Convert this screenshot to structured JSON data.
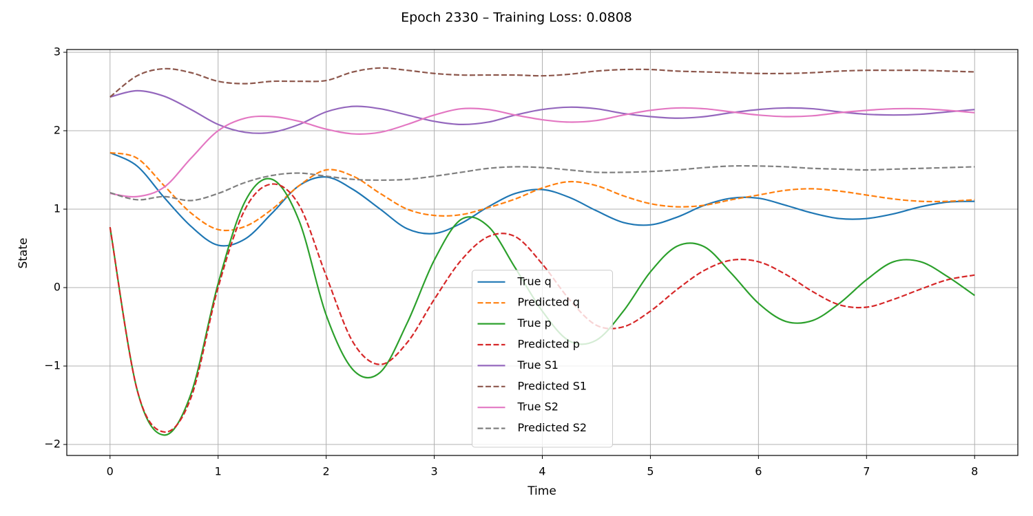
{
  "chart_data": {
    "type": "line",
    "title": "Epoch 2330 – Training Loss: 0.0808",
    "xlabel": "Time",
    "ylabel": "State",
    "x": [
      0,
      0.25,
      0.5,
      0.75,
      1,
      1.25,
      1.5,
      1.75,
      2,
      2.25,
      2.5,
      2.75,
      3,
      3.25,
      3.5,
      3.75,
      4,
      4.25,
      4.5,
      4.75,
      5,
      5.25,
      5.5,
      5.75,
      6,
      6.25,
      6.5,
      6.75,
      7,
      7.25,
      7.5,
      7.75,
      8
    ],
    "series": [
      {
        "name": "True q",
        "color": "#1f77b4",
        "style": "solid",
        "values": [
          1.72,
          1.55,
          1.15,
          0.78,
          0.54,
          0.62,
          0.95,
          1.3,
          1.41,
          1.25,
          1.0,
          0.75,
          0.69,
          0.82,
          1.03,
          1.2,
          1.25,
          1.15,
          0.98,
          0.83,
          0.8,
          0.9,
          1.05,
          1.14,
          1.14,
          1.05,
          0.95,
          0.88,
          0.88,
          0.94,
          1.03,
          1.09,
          1.1
        ]
      },
      {
        "name": "Predicted q",
        "color": "#ff7f0e",
        "style": "dashed",
        "values": [
          1.72,
          1.65,
          1.3,
          0.95,
          0.74,
          0.78,
          1.0,
          1.3,
          1.5,
          1.42,
          1.2,
          1.0,
          0.92,
          0.93,
          1.02,
          1.13,
          1.27,
          1.35,
          1.3,
          1.17,
          1.07,
          1.03,
          1.05,
          1.12,
          1.18,
          1.24,
          1.26,
          1.23,
          1.18,
          1.13,
          1.1,
          1.1,
          1.12
        ]
      },
      {
        "name": "True p",
        "color": "#2ca02c",
        "style": "solid",
        "values": [
          0.77,
          -1.3,
          -1.88,
          -1.35,
          0.05,
          1.1,
          1.38,
          0.85,
          -0.35,
          -1.05,
          -1.08,
          -0.45,
          0.35,
          0.87,
          0.78,
          0.25,
          -0.3,
          -0.68,
          -0.67,
          -0.3,
          0.2,
          0.53,
          0.52,
          0.18,
          -0.2,
          -0.43,
          -0.42,
          -0.2,
          0.1,
          0.33,
          0.33,
          0.14,
          -0.1
        ]
      },
      {
        "name": "Predicted p",
        "color": "#d62728",
        "style": "dashed",
        "values": [
          0.77,
          -1.3,
          -1.84,
          -1.4,
          0.0,
          1.0,
          1.32,
          1.05,
          0.15,
          -0.7,
          -0.98,
          -0.7,
          -0.15,
          0.35,
          0.65,
          0.65,
          0.3,
          -0.15,
          -0.48,
          -0.5,
          -0.3,
          -0.02,
          0.22,
          0.35,
          0.33,
          0.17,
          -0.05,
          -0.22,
          -0.25,
          -0.15,
          -0.02,
          0.1,
          0.16
        ]
      },
      {
        "name": "True S1",
        "color": "#9467bd",
        "style": "solid",
        "values": [
          2.43,
          2.51,
          2.44,
          2.27,
          2.08,
          1.98,
          1.98,
          2.08,
          2.24,
          2.31,
          2.28,
          2.2,
          2.12,
          2.08,
          2.11,
          2.2,
          2.27,
          2.3,
          2.28,
          2.22,
          2.18,
          2.16,
          2.18,
          2.23,
          2.27,
          2.29,
          2.28,
          2.24,
          2.21,
          2.2,
          2.21,
          2.24,
          2.27
        ]
      },
      {
        "name": "Predicted S1",
        "color": "#8c564b",
        "style": "dashed",
        "values": [
          2.43,
          2.7,
          2.79,
          2.74,
          2.63,
          2.6,
          2.63,
          2.63,
          2.64,
          2.75,
          2.8,
          2.77,
          2.73,
          2.71,
          2.71,
          2.71,
          2.7,
          2.72,
          2.76,
          2.78,
          2.78,
          2.76,
          2.75,
          2.74,
          2.73,
          2.73,
          2.74,
          2.76,
          2.77,
          2.77,
          2.77,
          2.76,
          2.75
        ]
      },
      {
        "name": "True S2",
        "color": "#e377c2",
        "style": "solid",
        "values": [
          1.2,
          1.16,
          1.28,
          1.65,
          2.0,
          2.16,
          2.18,
          2.12,
          2.02,
          1.96,
          1.98,
          2.08,
          2.2,
          2.28,
          2.27,
          2.2,
          2.14,
          2.11,
          2.13,
          2.2,
          2.26,
          2.29,
          2.28,
          2.24,
          2.2,
          2.18,
          2.19,
          2.23,
          2.26,
          2.28,
          2.28,
          2.26,
          2.23
        ]
      },
      {
        "name": "Predicted S2",
        "color": "#7f7f7f",
        "style": "dashed",
        "values": [
          1.21,
          1.12,
          1.16,
          1.11,
          1.2,
          1.34,
          1.43,
          1.46,
          1.42,
          1.38,
          1.37,
          1.38,
          1.42,
          1.47,
          1.52,
          1.54,
          1.53,
          1.5,
          1.47,
          1.47,
          1.48,
          1.5,
          1.53,
          1.55,
          1.55,
          1.54,
          1.52,
          1.51,
          1.5,
          1.51,
          1.52,
          1.53,
          1.54
        ]
      }
    ],
    "xlim": [
      -0.4,
      8.4
    ],
    "xticks": [
      0,
      1,
      2,
      3,
      4,
      5,
      6,
      7,
      8
    ],
    "ylim": [
      -2.14,
      3.035
    ],
    "yticks": [
      {
        "value": -2,
        "label": "−2"
      },
      {
        "value": -1,
        "label": "−1"
      },
      0,
      1,
      2,
      3
    ],
    "grid": true,
    "legend": "lower center"
  }
}
